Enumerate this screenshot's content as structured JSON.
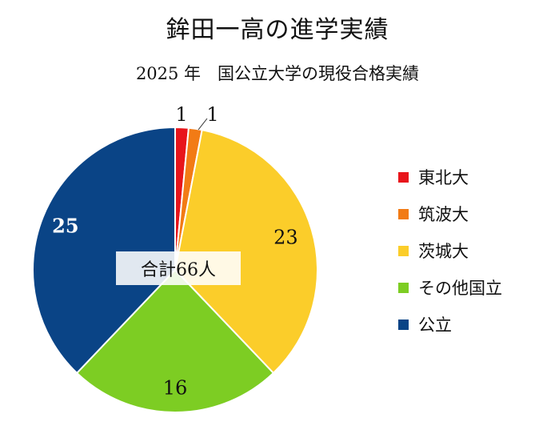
{
  "chart_data": {
    "type": "pie",
    "title": "鉾田一高の進学実績",
    "subtitle": "2025 年　国公立大学の現役合格実績",
    "center_label": "合計66人",
    "total": 66,
    "legend_position": "right",
    "slices": [
      {
        "label": "東北大",
        "value": 1,
        "color": "#e8151b"
      },
      {
        "label": "筑波大",
        "value": 1,
        "color": "#f27b15"
      },
      {
        "label": "茨城大",
        "value": 23,
        "color": "#fbcd2a"
      },
      {
        "label": "その他国立",
        "value": 16,
        "color": "#7dcd23"
      },
      {
        "label": "公立",
        "value": 25,
        "color": "#0a4486"
      }
    ]
  }
}
